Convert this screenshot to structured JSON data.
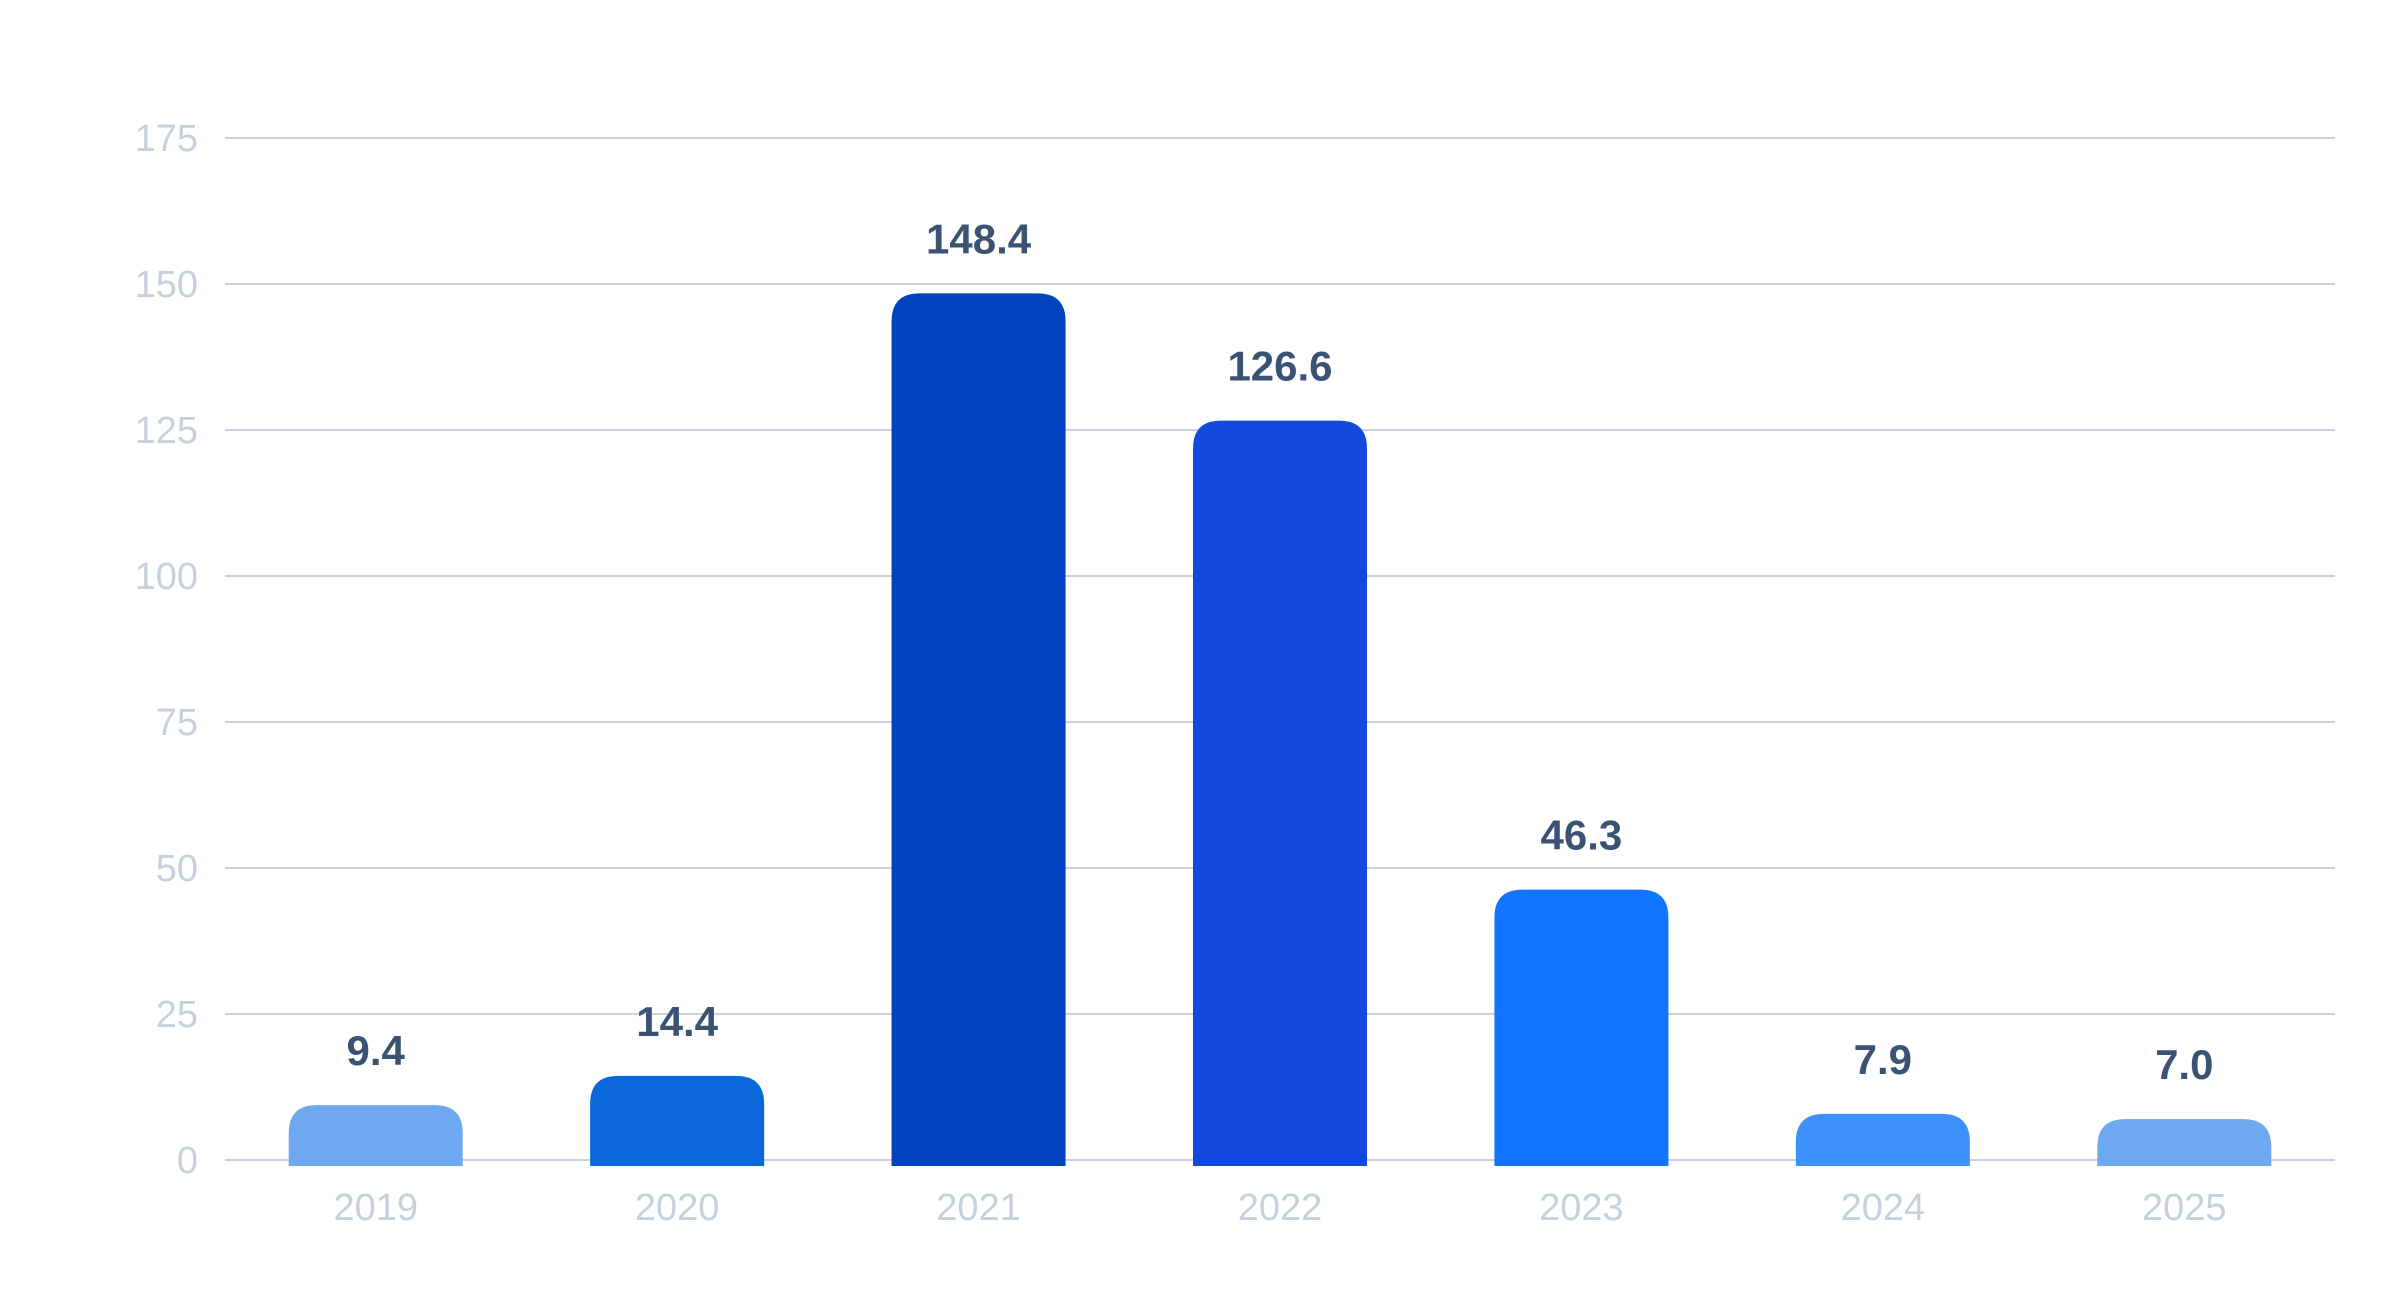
{
  "chart_data": {
    "type": "bar",
    "title": "",
    "xlabel": "",
    "ylabel": "",
    "categories": [
      "2019",
      "2020",
      "2021",
      "2022",
      "2023",
      "2024",
      "2025"
    ],
    "values": [
      9.4,
      14.4,
      148.4,
      126.6,
      46.3,
      7.9,
      7.0
    ],
    "data_labels": [
      "9.4",
      "14.4",
      "148.4",
      "126.6",
      "46.3",
      "7.9",
      "7.0"
    ],
    "bar_colors": [
      "#6ea8f0",
      "#0a68dc",
      "#0342be",
      "#1349dc",
      "#1275ff",
      "#3d91fb",
      "#6ea8f0"
    ],
    "ylim": [
      0,
      175
    ],
    "yticks": [
      0,
      25,
      50,
      75,
      100,
      125,
      150,
      175
    ],
    "ytick_labels": [
      "0",
      "25",
      "50",
      "75",
      "100",
      "125",
      "150",
      "175"
    ],
    "grid": true,
    "legend": "none"
  }
}
